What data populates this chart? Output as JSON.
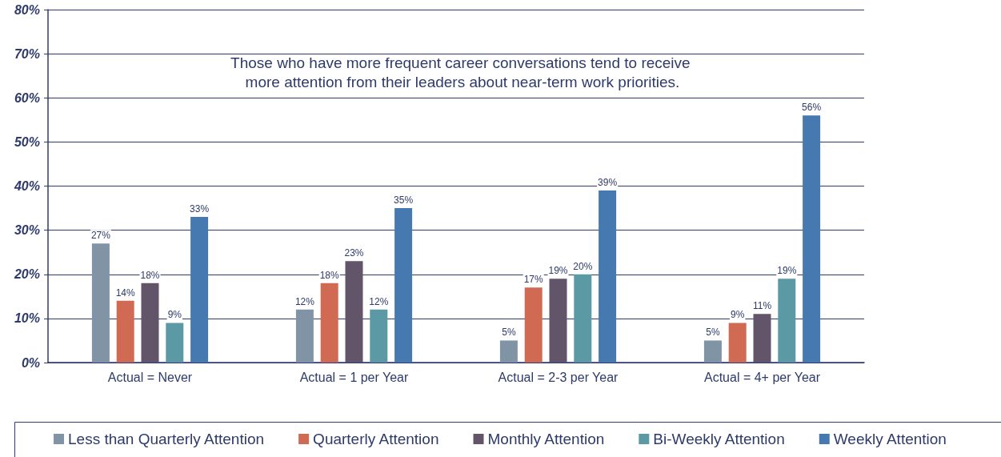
{
  "chart_data": {
    "type": "bar",
    "categories": [
      "Actual = Never",
      "Actual = 1 per Year",
      "Actual = 2-3 per Year",
      "Actual = 4+ per Year"
    ],
    "series": [
      {
        "name": "Less than Quarterly Attention",
        "color": "#8194a5",
        "values": [
          27,
          12,
          5,
          5
        ],
        "value_labels": [
          "27%",
          "12%",
          "5%",
          "5%"
        ]
      },
      {
        "name": "Quarterly Attention",
        "color": "#d06a52",
        "values": [
          14,
          18,
          17,
          9
        ],
        "value_labels": [
          "14%",
          "18%",
          "17%",
          "9%"
        ]
      },
      {
        "name": "Monthly Attention",
        "color": "#635569",
        "values": [
          18,
          23,
          19,
          11
        ],
        "value_labels": [
          "18%",
          "23%",
          "19%",
          "11%"
        ]
      },
      {
        "name": "Bi-Weekly Attention",
        "color": "#5b99a5",
        "values": [
          9,
          12,
          20,
          19
        ],
        "value_labels": [
          "9%",
          "12%",
          "20%",
          "19%"
        ]
      },
      {
        "name": "Weekly Attention",
        "color": "#4579b0",
        "values": [
          33,
          35,
          39,
          56
        ],
        "value_labels": [
          "33%",
          "35%",
          "39%",
          "56%"
        ]
      }
    ],
    "ylim": [
      0,
      80
    ],
    "yticks": [
      {
        "value": 0,
        "label": "0%"
      },
      {
        "value": 10,
        "label": "10%"
      },
      {
        "value": 20,
        "label": "20%"
      },
      {
        "value": 30,
        "label": "30%"
      },
      {
        "value": 40,
        "label": "40%"
      },
      {
        "value": 50,
        "label": "50%"
      },
      {
        "value": 60,
        "label": "60%"
      },
      {
        "value": 70,
        "label": "70%"
      },
      {
        "value": 80,
        "label": "80%"
      }
    ],
    "annotations": [
      "Those who have more frequent career conversations tend to receive more attention from their leaders about near-term work priorities."
    ],
    "grid": "y",
    "legend": "bottom"
  }
}
